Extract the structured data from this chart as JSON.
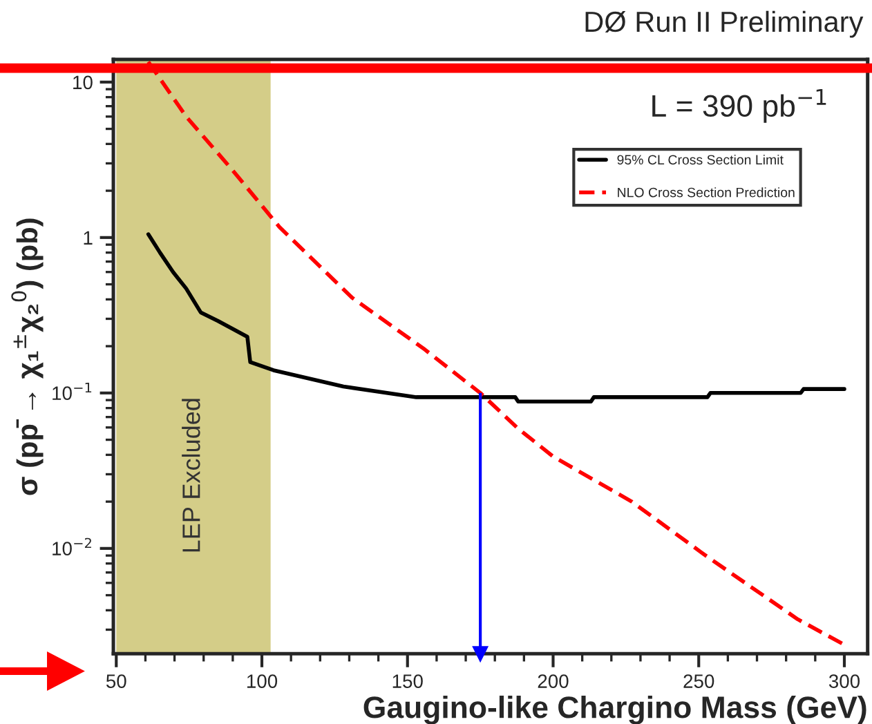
{
  "chart_data": {
    "type": "line",
    "title": "DØ Run II Preliminary",
    "xlabel": "Gaugino-like Chargino Mass (GeV)",
    "ylabel": "σ (pp̄ → χ₁$^{±}$χ₂$^{0}$) (pb)",
    "annotations": [
      "L = 390 pb$^{−1}$"
    ],
    "log": "y",
    "xlim": [
      49,
      308
    ],
    "xticks": [
      50,
      100,
      150,
      200,
      250,
      300
    ],
    "ylim": [
      0.0021,
      14
    ],
    "yticks": [
      {
        "value": 0.01,
        "label": "10$^{−2}$"
      },
      {
        "value": 0.1,
        "label": "10$^{−1}$"
      },
      1,
      10
    ],
    "grid": false,
    "legend": "top right",
    "series": [
      {
        "name": "95% CL Cross Section Limit",
        "color": "#000000",
        "line_style": "solid",
        "x": [
          61,
          65,
          69.5,
          74,
          79,
          85,
          95,
          96,
          104,
          128,
          153,
          187,
          188,
          213,
          214,
          253,
          254,
          285,
          286,
          300
        ],
        "values": [
          1.05,
          0.8,
          0.6,
          0.47,
          0.33,
          0.29,
          0.23,
          0.158,
          0.14,
          0.11,
          0.094,
          0.094,
          0.088,
          0.088,
          0.094,
          0.094,
          0.1,
          0.1,
          0.106,
          0.106
        ]
      },
      {
        "name": "NLO Cross Section Prediction",
        "color": "#ff0000",
        "line_style": "dashed",
        "x": [
          61,
          74,
          90,
          106,
          131,
          156,
          175,
          188,
          200,
          227,
          252,
          284,
          300
        ],
        "values": [
          13.5,
          6.0,
          2.7,
          1.17,
          0.41,
          0.19,
          0.1,
          0.059,
          0.039,
          0.02,
          0.0091,
          0.0035,
          0.0024
        ]
      }
    ],
    "bands": [
      {
        "axis": "x",
        "from": 50,
        "to": 103,
        "label": "LEP Excluded",
        "color": "#d4cd88"
      }
    ],
    "ref_lines": [
      {
        "axis": "y",
        "value": 12.3,
        "color": "#ff0000"
      },
      {
        "axis": "x",
        "value": 175,
        "color": "#0000ff"
      }
    ]
  }
}
